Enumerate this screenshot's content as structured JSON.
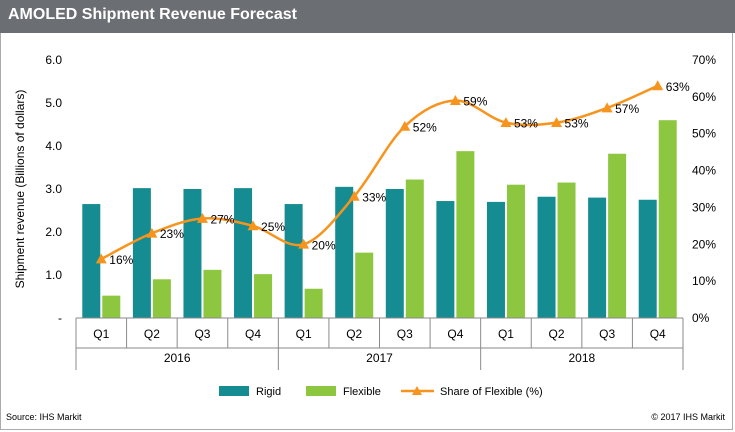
{
  "header": {
    "title": "AMOLED Shipment Revenue Forecast"
  },
  "footer": {
    "source": "Source: IHS Markit",
    "copyright": "© 2017 IHS Markit"
  },
  "colors": {
    "rigid": "#148C91",
    "flexible": "#8DC63F",
    "share": "#F7941D",
    "grid": "#C8C8C8",
    "titlebar": "#6B6E72"
  },
  "chart_data": {
    "type": "bar",
    "title": "AMOLED Shipment Revenue Forecast",
    "categories": [
      "Q1",
      "Q2",
      "Q3",
      "Q4",
      "Q1",
      "Q2",
      "Q3",
      "Q4",
      "Q1",
      "Q2",
      "Q3",
      "Q4"
    ],
    "groups": [
      {
        "label": "2016",
        "start": 0,
        "end": 3
      },
      {
        "label": "2017",
        "start": 4,
        "end": 7
      },
      {
        "label": "2018",
        "start": 8,
        "end": 11
      }
    ],
    "ylabel": "Shipment revenue  (Billions of dollars)",
    "ylim": [
      0,
      6
    ],
    "yticks": [
      0,
      1,
      2,
      3,
      4,
      5,
      6
    ],
    "ytick_labels": [
      "-",
      "1.0",
      "2.0",
      "3.0",
      "4.0",
      "5.0",
      "6.0"
    ],
    "y2lim": [
      0,
      70
    ],
    "y2ticks": [
      0,
      10,
      20,
      30,
      40,
      50,
      60,
      70
    ],
    "y2tick_labels": [
      "0%",
      "10%",
      "20%",
      "30%",
      "40%",
      "50%",
      "60%",
      "70%"
    ],
    "series": [
      {
        "name": "Rigid",
        "type": "bar",
        "color": "#148C91",
        "values": [
          2.65,
          3.02,
          3.0,
          3.02,
          2.65,
          3.05,
          3.0,
          2.72,
          2.7,
          2.82,
          2.8,
          2.75
        ]
      },
      {
        "name": "Flexible",
        "type": "bar",
        "color": "#8DC63F",
        "values": [
          0.52,
          0.9,
          1.12,
          1.02,
          0.68,
          1.52,
          3.22,
          3.88,
          3.1,
          3.15,
          3.82,
          4.6
        ]
      },
      {
        "name": "Share of Flexible (%)",
        "type": "line",
        "axis": "right",
        "color": "#F7941D",
        "values": [
          16,
          23,
          27,
          25,
          20,
          33,
          52,
          59,
          53,
          53,
          57,
          63
        ],
        "labels": [
          "16%",
          "23%",
          "27%",
          "25%",
          "20%",
          "33%",
          "52%",
          "59%",
          "53%",
          "53%",
          "57%",
          "63%"
        ]
      }
    ],
    "legend": {
      "position": "bottom",
      "items": [
        "Rigid",
        "Flexible",
        "Share of Flexible (%)"
      ]
    },
    "grid": false
  }
}
